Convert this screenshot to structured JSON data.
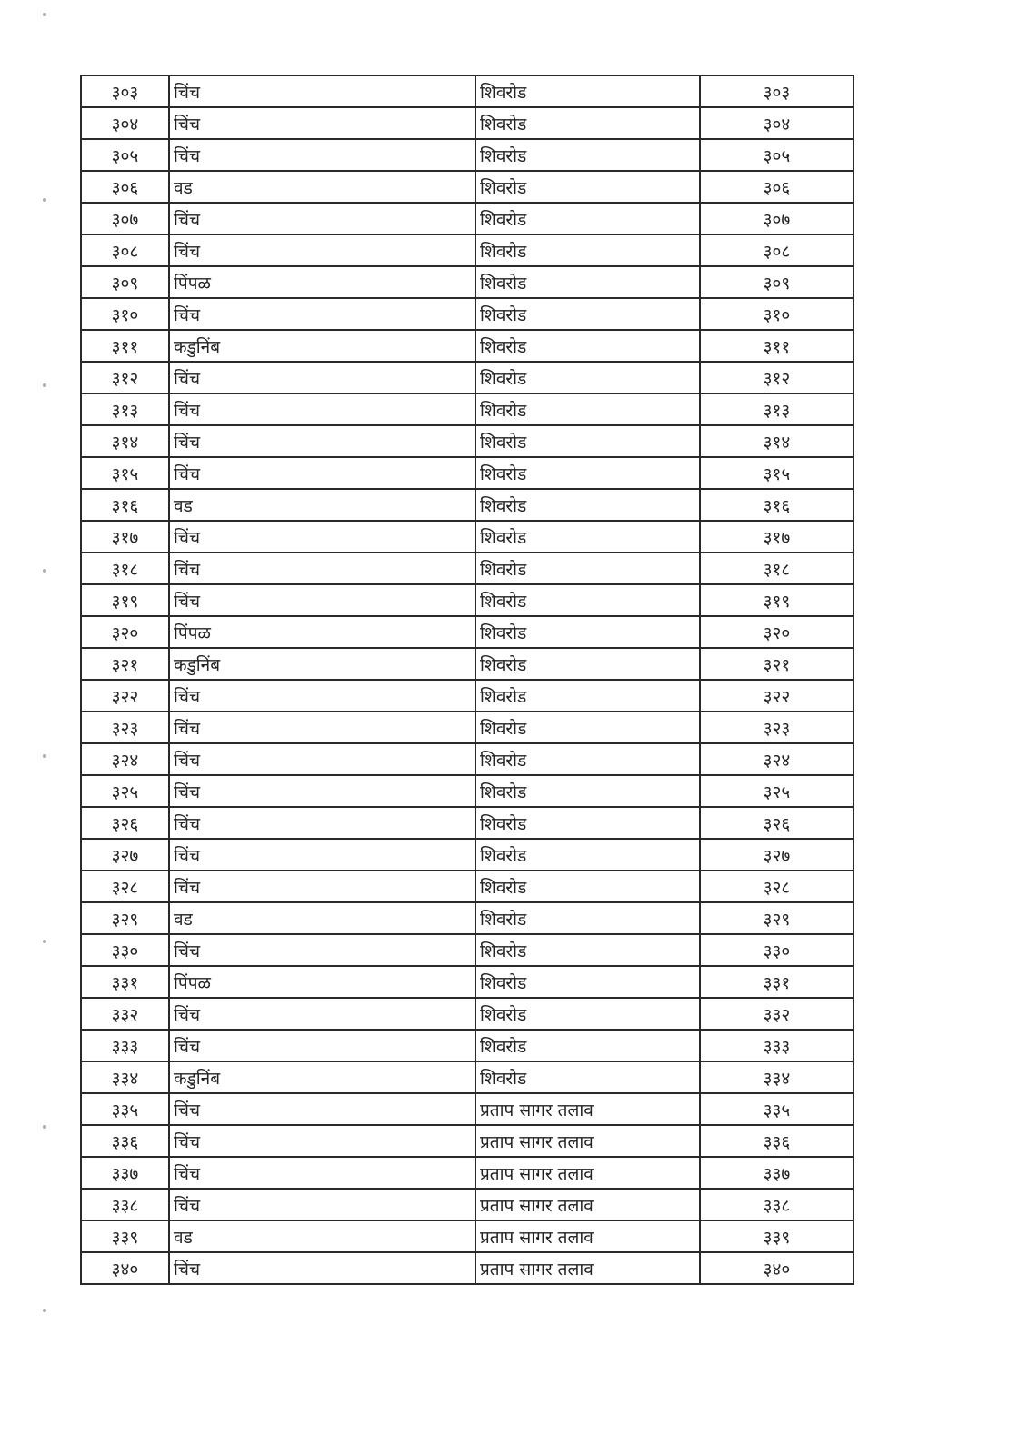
{
  "table": {
    "rows": [
      [
        "३०३",
        "चिंच",
        "शिवरोड",
        "३०३"
      ],
      [
        "३०४",
        "चिंच",
        "शिवरोड",
        "३०४"
      ],
      [
        "३०५",
        "चिंच",
        "शिवरोड",
        "३०५"
      ],
      [
        "३०६",
        "वड",
        "शिवरोड",
        "३०६"
      ],
      [
        "३०७",
        "चिंच",
        "शिवरोड",
        "३०७"
      ],
      [
        "३०८",
        "चिंच",
        "शिवरोड",
        "३०८"
      ],
      [
        "३०९",
        "पिंपळ",
        "शिवरोड",
        "३०९"
      ],
      [
        "३१०",
        "चिंच",
        "शिवरोड",
        "३१०"
      ],
      [
        "३११",
        "कडुनिंब",
        "शिवरोड",
        "३११"
      ],
      [
        "३१२",
        "चिंच",
        "शिवरोड",
        "३१२"
      ],
      [
        "३१३",
        "चिंच",
        "शिवरोड",
        "३१३"
      ],
      [
        "३१४",
        "चिंच",
        "शिवरोड",
        "३१४"
      ],
      [
        "३१५",
        "चिंच",
        "शिवरोड",
        "३१५"
      ],
      [
        "३१६",
        "वड",
        "शिवरोड",
        "३१६"
      ],
      [
        "३१७",
        "चिंच",
        "शिवरोड",
        "३१७"
      ],
      [
        "३१८",
        "चिंच",
        "शिवरोड",
        "३१८"
      ],
      [
        "३१९",
        "चिंच",
        "शिवरोड",
        "३१९"
      ],
      [
        "३२०",
        "पिंपळ",
        "शिवरोड",
        "३२०"
      ],
      [
        "३२१",
        "कडुनिंब",
        "शिवरोड",
        "३२१"
      ],
      [
        "३२२",
        "चिंच",
        "शिवरोड",
        "३२२"
      ],
      [
        "३२३",
        "चिंच",
        "शिवरोड",
        "३२३"
      ],
      [
        "३२४",
        "चिंच",
        "शिवरोड",
        "३२४"
      ],
      [
        "३२५",
        "चिंच",
        "शिवरोड",
        "३२५"
      ],
      [
        "३२६",
        "चिंच",
        "शिवरोड",
        "३२६"
      ],
      [
        "३२७",
        "चिंच",
        "शिवरोड",
        "३२७"
      ],
      [
        "३२८",
        "चिंच",
        "शिवरोड",
        "३२८"
      ],
      [
        "३२९",
        "वड",
        "शिवरोड",
        "३२९"
      ],
      [
        "३३०",
        "चिंच",
        "शिवरोड",
        "३३०"
      ],
      [
        "३३१",
        "पिंपळ",
        "शिवरोड",
        "३३१"
      ],
      [
        "३३२",
        "चिंच",
        "शिवरोड",
        "३३२"
      ],
      [
        "३३३",
        "चिंच",
        "शिवरोड",
        "३३३"
      ],
      [
        "३३४",
        "कडुनिंब",
        "शिवरोड",
        "३३४"
      ],
      [
        "३३५",
        "चिंच",
        "प्रताप सागर तलाव",
        "३३५"
      ],
      [
        "३३६",
        "चिंच",
        "प्रताप सागर तलाव",
        "३३६"
      ],
      [
        "३३७",
        "चिंच",
        "प्रताप सागर तलाव",
        "३३७"
      ],
      [
        "३३८",
        "चिंच",
        "प्रताप सागर तलाव",
        "३३८"
      ],
      [
        "३३९",
        "वड",
        "प्रताप सागर तलाव",
        "३३९"
      ],
      [
        "३४०",
        "चिंच",
        "प्रताप सागर तलाव",
        "३४०"
      ]
    ]
  }
}
